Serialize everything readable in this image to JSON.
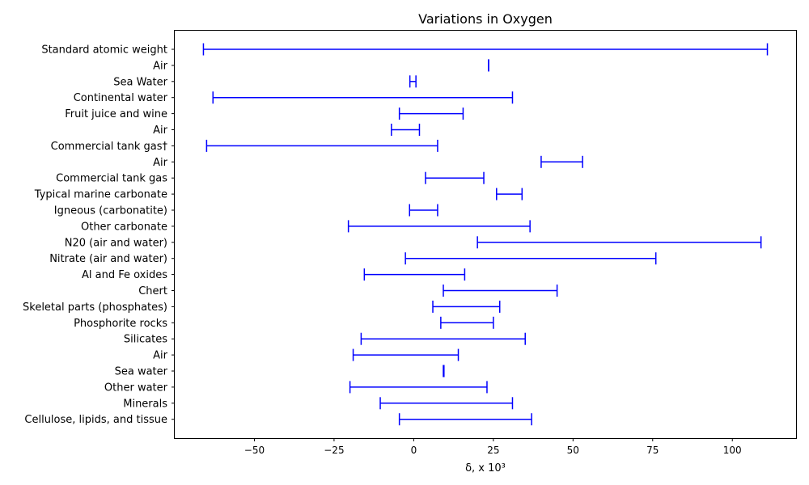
{
  "chart_data": {
    "type": "range",
    "title": "Variations  in Oxygen",
    "xlabel": "δ, x 10³",
    "ylabel": "",
    "xlim": [
      -75,
      120
    ],
    "xticks": [
      -50,
      -25,
      0,
      25,
      50,
      75,
      100
    ],
    "xtick_labels": [
      "−50",
      "−25",
      "0",
      "25",
      "50",
      "75",
      "100"
    ],
    "grid": false,
    "color": "#0000ff",
    "categories": [
      "Standard atomic weight",
      "Air",
      "Sea Water",
      "Continental water",
      "Fruit juice and wine",
      "Air ",
      "Commercial tank gas†",
      "Air ",
      "Commercial tank gas",
      "Typical marine carbonate",
      "Igneous (carbonatite)",
      "Other carbonate",
      "N20 (air and water)",
      "Nitrate (air and water)",
      "Al and Fe oxides",
      "Chert",
      "Skeletal parts (phosphates)",
      "Phosphorite rocks",
      "Silicates",
      "Air ",
      "Sea water ",
      "Other water ",
      "Minerals ",
      "Cellulose, lipids, and tissue"
    ],
    "ranges": [
      [
        -66,
        111
      ],
      [
        23.5,
        23.5
      ],
      [
        -1.2,
        0.7
      ],
      [
        -63,
        31
      ],
      [
        -4.5,
        15.5
      ],
      [
        -7,
        1.8
      ],
      [
        -65,
        7.5
      ],
      [
        40,
        53
      ],
      [
        3.7,
        22
      ],
      [
        26,
        34
      ],
      [
        -1.3,
        7.5
      ],
      [
        -20.5,
        36.5
      ],
      [
        20,
        109
      ],
      [
        -2.6,
        76
      ],
      [
        -15.5,
        16
      ],
      [
        9.3,
        45
      ],
      [
        6,
        27
      ],
      [
        8.5,
        25
      ],
      [
        -16.5,
        35
      ],
      [
        -19,
        14
      ],
      [
        9.3,
        9.5
      ],
      [
        -20,
        23
      ],
      [
        -10.5,
        31
      ],
      [
        -4.5,
        37
      ]
    ]
  }
}
